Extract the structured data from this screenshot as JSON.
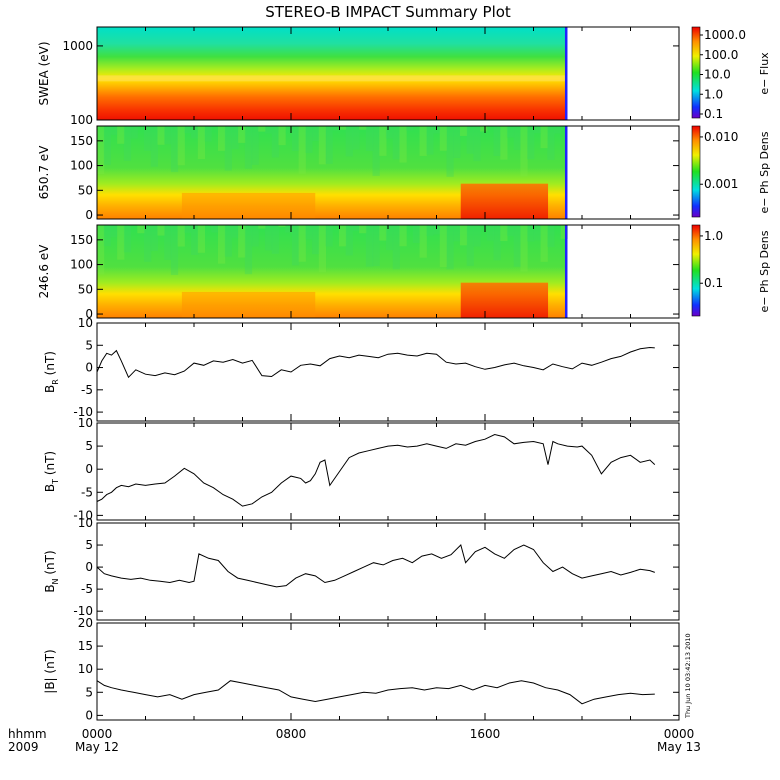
{
  "chart_data": {
    "type": "multi-panel-line-spectrogram",
    "title": "STEREO-B IMPACT Summary Plot",
    "x_axis": {
      "range": [
        "2009-05-12 00:00",
        "2009-05-13 00:00"
      ],
      "ticks": [
        {
          "hhmm": "0000",
          "date": "May 12"
        },
        {
          "hhmm": "0800",
          "date": ""
        },
        {
          "hhmm": "1600",
          "date": ""
        },
        {
          "hhmm": "0000",
          "date": "May 13"
        }
      ],
      "row_label": "hhmm",
      "year_label": "2009"
    },
    "data_end_hour": 19.4,
    "spectrograms": [
      {
        "id": "swea",
        "ylabel": "SWEA (eV)",
        "yscale": "log",
        "yrange": [
          100,
          1800
        ],
        "yticks": [
          "1000",
          "100"
        ],
        "colorbar_label": "e− Flux",
        "colorbar_scale": "log",
        "colorbar_ticks": [
          "1000.0",
          "100.0",
          "10.0",
          "1.0",
          "0.1"
        ]
      },
      {
        "id": "pad650",
        "ylabel": "650.7 eV",
        "yscale": "linear",
        "yrange": [
          -8,
          180
        ],
        "yticks": [
          "150",
          "100",
          "50",
          "0"
        ],
        "colorbar_label": "e− Ph Sp Dens",
        "colorbar_scale": "log",
        "colorbar_ticks": [
          "0.010",
          "0.001"
        ]
      },
      {
        "id": "pad246",
        "ylabel": "246.6 eV",
        "yscale": "linear",
        "yrange": [
          -8,
          180
        ],
        "yticks": [
          "150",
          "100",
          "50",
          "0"
        ],
        "colorbar_label": "e− Ph Sp Dens",
        "colorbar_scale": "log",
        "colorbar_ticks": [
          "1.0",
          "0.1"
        ]
      }
    ],
    "line_panels": [
      {
        "id": "br",
        "ylabel": "B",
        "ysub": "R",
        "yunit": "(nT)",
        "yrange": [
          -12,
          10
        ],
        "yticks": [
          "10",
          "5",
          "0",
          "-5",
          "-10"
        ],
        "x": [
          0,
          0.2,
          0.4,
          0.6,
          0.8,
          1.0,
          1.3,
          1.6,
          2.0,
          2.4,
          2.8,
          3.2,
          3.6,
          4.0,
          4.4,
          4.8,
          5.2,
          5.6,
          6.0,
          6.4,
          6.8,
          7.2,
          7.6,
          8.0,
          8.4,
          8.8,
          9.2,
          9.6,
          10.0,
          10.4,
          10.8,
          11.2,
          11.6,
          12.0,
          12.4,
          12.8,
          13.2,
          13.6,
          14.0,
          14.4,
          14.8,
          15.2,
          15.6,
          16.0,
          16.4,
          16.8,
          17.2,
          17.6,
          18.0,
          18.4,
          18.8,
          19.2,
          19.6,
          20.0,
          20.4,
          20.8,
          21.2,
          21.6,
          22.0,
          22.4,
          22.8,
          23.0
        ],
        "y": [
          -1,
          1.5,
          3.2,
          2.8,
          3.8,
          1.5,
          -2.2,
          -0.5,
          -1.5,
          -1.8,
          -1.2,
          -1.6,
          -0.8,
          1.0,
          0.5,
          1.5,
          1.2,
          1.8,
          1.0,
          1.6,
          -1.8,
          -2.0,
          -0.5,
          -1.0,
          0.5,
          0.8,
          0.4,
          2.0,
          2.6,
          2.2,
          2.8,
          2.5,
          2.2,
          3.0,
          3.2,
          2.8,
          2.6,
          3.2,
          3.0,
          1.2,
          0.8,
          1.0,
          0.2,
          -0.4,
          0.0,
          0.6,
          1.0,
          0.4,
          0.0,
          -0.5,
          0.8,
          0.2,
          -0.3,
          1.0,
          0.5,
          1.2,
          2.0,
          2.5,
          3.5,
          4.2,
          4.5,
          4.4
        ]
      },
      {
        "id": "bt",
        "ylabel": "B",
        "ysub": "T",
        "yunit": "(nT)",
        "yrange": [
          -11,
          10
        ],
        "yticks": [
          "10",
          "5",
          "0",
          "-5",
          "-10"
        ],
        "x": [
          0,
          0.2,
          0.4,
          0.6,
          0.8,
          1.0,
          1.3,
          1.6,
          2.0,
          2.4,
          2.8,
          3.2,
          3.6,
          4.0,
          4.4,
          4.8,
          5.2,
          5.6,
          6.0,
          6.4,
          6.8,
          7.2,
          7.6,
          8.0,
          8.4,
          8.6,
          8.8,
          9.0,
          9.2,
          9.4,
          9.6,
          10.0,
          10.4,
          10.8,
          11.2,
          11.6,
          12.0,
          12.4,
          12.8,
          13.2,
          13.6,
          14.0,
          14.4,
          14.8,
          15.2,
          15.6,
          16.0,
          16.4,
          16.8,
          17.2,
          17.6,
          18.0,
          18.4,
          18.6,
          18.8,
          19.0,
          19.4,
          19.8,
          20.0,
          20.4,
          20.8,
          21.2,
          21.6,
          22.0,
          22.4,
          22.8,
          23.0
        ],
        "y": [
          -7,
          -6.5,
          -5.5,
          -5.0,
          -4.0,
          -3.5,
          -3.8,
          -3.2,
          -3.5,
          -3.2,
          -3.0,
          -1.5,
          0.2,
          -1.0,
          -3.0,
          -4.0,
          -5.5,
          -6.5,
          -8.0,
          -7.5,
          -6.0,
          -5.0,
          -3.0,
          -1.5,
          -2.0,
          -3.0,
          -2.5,
          -1.0,
          1.5,
          2.0,
          -3.5,
          -0.5,
          2.5,
          3.5,
          4.0,
          4.5,
          5.0,
          5.2,
          4.8,
          5.0,
          5.5,
          5.0,
          4.5,
          5.5,
          5.2,
          6.0,
          6.5,
          7.5,
          7.0,
          5.5,
          5.8,
          6.0,
          5.5,
          1.0,
          6.0,
          5.5,
          5.0,
          4.8,
          5.0,
          3.0,
          -1.0,
          1.5,
          2.5,
          3.0,
          1.5,
          2.0,
          1.0
        ]
      },
      {
        "id": "bn",
        "ylabel": "B",
        "ysub": "N",
        "yunit": "(nT)",
        "yrange": [
          -12,
          10
        ],
        "yticks": [
          "10",
          "5",
          "0",
          "-5",
          "-10"
        ],
        "x": [
          0,
          0.3,
          0.6,
          1.0,
          1.4,
          1.8,
          2.2,
          2.6,
          3.0,
          3.4,
          3.8,
          4.0,
          4.2,
          4.6,
          5.0,
          5.4,
          5.8,
          6.2,
          6.6,
          7.0,
          7.4,
          7.8,
          8.2,
          8.6,
          9.0,
          9.4,
          9.8,
          10.2,
          10.6,
          11.0,
          11.4,
          11.8,
          12.2,
          12.6,
          13.0,
          13.4,
          13.8,
          14.2,
          14.6,
          15.0,
          15.2,
          15.6,
          16.0,
          16.4,
          16.8,
          17.2,
          17.6,
          18.0,
          18.4,
          18.8,
          19.2,
          19.6,
          20.0,
          20.4,
          20.8,
          21.2,
          21.6,
          22.0,
          22.4,
          22.8,
          23.0
        ],
        "y": [
          0,
          -1.5,
          -2.0,
          -2.5,
          -2.8,
          -2.5,
          -3.0,
          -3.2,
          -3.5,
          -3.0,
          -3.5,
          -3.2,
          3.0,
          2.0,
          1.5,
          -1.0,
          -2.5,
          -3.0,
          -3.5,
          -4.0,
          -4.5,
          -4.2,
          -2.5,
          -1.5,
          -2.0,
          -3.5,
          -3.0,
          -2.0,
          -1.0,
          0.0,
          1.0,
          0.5,
          1.5,
          2.0,
          1.0,
          2.5,
          3.0,
          2.0,
          2.8,
          5.0,
          1.0,
          3.5,
          4.5,
          3.0,
          2.0,
          4.0,
          5.0,
          4.0,
          1.0,
          -1.0,
          0.0,
          -1.5,
          -2.5,
          -2.0,
          -1.5,
          -1.0,
          -1.8,
          -1.2,
          -0.5,
          -0.8,
          -1.2
        ]
      },
      {
        "id": "bmag",
        "ylabel": "|B|",
        "ysub": "",
        "yunit": "(nT)",
        "yrange": [
          -1,
          20
        ],
        "yticks": [
          "20",
          "15",
          "10",
          "5",
          "0"
        ],
        "x": [
          0,
          0.3,
          0.6,
          1.0,
          1.5,
          2.0,
          2.5,
          3.0,
          3.5,
          4.0,
          4.5,
          5.0,
          5.5,
          6.0,
          6.5,
          7.0,
          7.5,
          8.0,
          8.5,
          9.0,
          9.5,
          10.0,
          10.5,
          11.0,
          11.5,
          12.0,
          12.5,
          13.0,
          13.5,
          14.0,
          14.5,
          15.0,
          15.5,
          16.0,
          16.5,
          17.0,
          17.5,
          18.0,
          18.5,
          19.0,
          19.5,
          20.0,
          20.5,
          21.0,
          21.5,
          22.0,
          22.5,
          23.0
        ],
        "y": [
          7.5,
          6.5,
          6.0,
          5.5,
          5.0,
          4.5,
          4.0,
          4.5,
          3.5,
          4.5,
          5.0,
          5.5,
          7.5,
          7.0,
          6.5,
          6.0,
          5.5,
          4.0,
          3.5,
          3.0,
          3.5,
          4.0,
          4.5,
          5.0,
          4.8,
          5.5,
          5.8,
          6.0,
          5.5,
          6.0,
          5.8,
          6.5,
          5.5,
          6.5,
          6.0,
          7.0,
          7.5,
          7.0,
          6.0,
          5.5,
          4.5,
          2.5,
          3.5,
          4.0,
          4.5,
          4.8,
          4.5,
          4.6
        ]
      }
    ]
  },
  "side_stamp": "Thu Jun 10 03:42:13 2010"
}
